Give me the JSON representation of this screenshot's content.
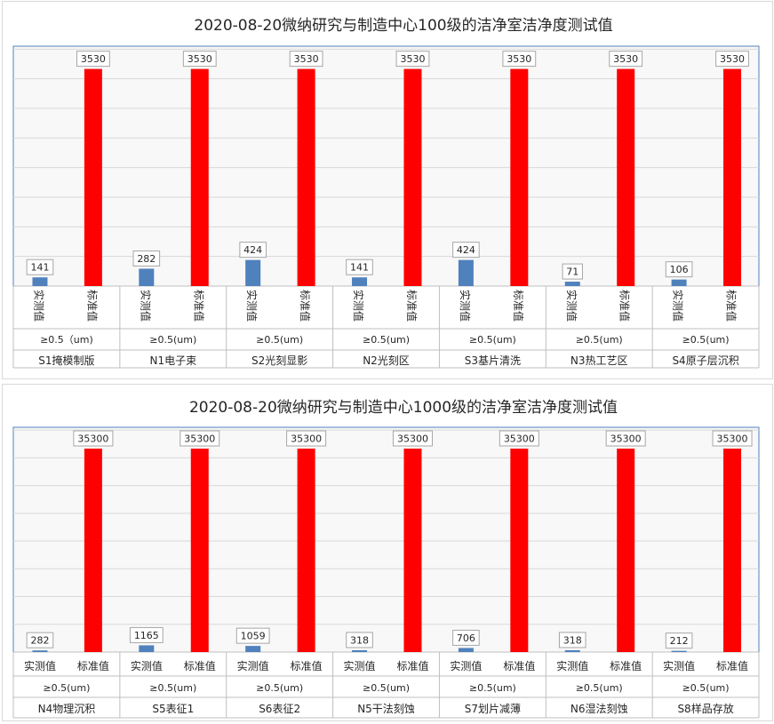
{
  "colors": {
    "measured": "#4f81bd",
    "standard": "#ff0000",
    "grid": "#d9d9d9",
    "plot_border": "#4f81bd",
    "axis_line": "#bfbfbf",
    "text": "#262626"
  },
  "chart_data": [
    {
      "type": "bar",
      "title": "2020-08-20微纳研究与制造中心100级的洁净室洁净度测试值",
      "ylim": [
        0,
        3900
      ],
      "grid": true,
      "series": [
        {
          "values": [
            141,
            282,
            424,
            141,
            424,
            71,
            106
          ]
        },
        {
          "values": [
            3530,
            3530,
            3530,
            3530,
            3530,
            3530,
            3530
          ]
        }
      ],
      "bar_labels": [
        "实测值",
        "标准值"
      ],
      "particle_sizes": [
        "≥0.5（um)",
        "≥0.5(um)",
        "≥0.5(um)",
        "≥0.5(um)",
        "≥0.5(um)",
        "≥0.5(um)",
        "≥0.5(um)"
      ],
      "categories": [
        "S1掩模制版",
        "N1电子束",
        "S2光刻显影",
        "N2光刻区",
        "S3基片清洗",
        "N3热工艺区",
        "S4原子层沉积"
      ]
    },
    {
      "type": "bar",
      "title": "2020-08-20微纳研究与制造中心1000级的洁净室洁净度测试值",
      "ylim": [
        0,
        39000
      ],
      "grid": true,
      "series": [
        {
          "values": [
            282,
            1165,
            1059,
            318,
            706,
            318,
            212
          ]
        },
        {
          "values": [
            35300,
            35300,
            35300,
            35300,
            35300,
            35300,
            35300
          ]
        }
      ],
      "bar_labels": [
        "实测值",
        "标准值"
      ],
      "particle_sizes": [
        "≥0.5(um)",
        "≥0.5(um)",
        "≥0.5(um)",
        "≥0.5(um)",
        "≥0.5(um)",
        "≥0.5(um)",
        "≥0.5(um)"
      ],
      "categories": [
        "N4物理沉积",
        "S5表征1",
        "S6表征2",
        "N5干法刻蚀",
        "S7划片减薄",
        "N6湿法刻蚀",
        "S8样品存放"
      ]
    }
  ]
}
